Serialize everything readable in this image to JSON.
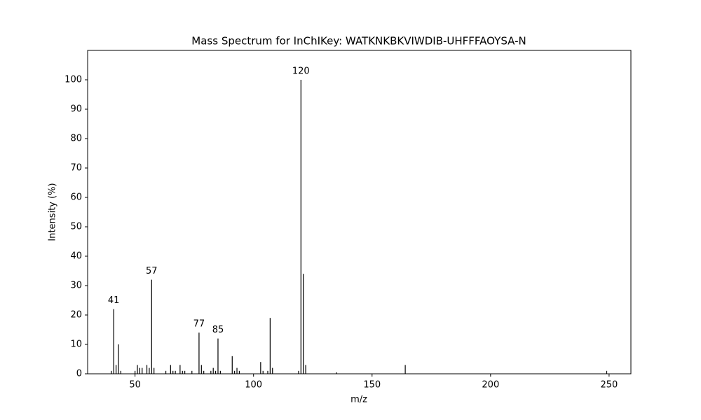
{
  "chart_data": {
    "type": "stem",
    "title": "Mass Spectrum for InChIKey: WATKNKBKVIWDIB-UHFFFAOYSA-N",
    "xlabel": "m/z",
    "ylabel": "Intensity (%)",
    "x": [
      40,
      41,
      42,
      43,
      44,
      50,
      51,
      52,
      53,
      55,
      56,
      57,
      58,
      63,
      65,
      66,
      67,
      69,
      70,
      71,
      74,
      77,
      78,
      79,
      82,
      83,
      84,
      85,
      86,
      91,
      92,
      93,
      94,
      103,
      104,
      106,
      107,
      108,
      119,
      120,
      121,
      122,
      135,
      164,
      249
    ],
    "values": [
      1,
      22,
      3,
      10,
      1,
      1,
      3,
      2,
      2,
      3,
      2,
      32,
      2,
      1,
      3,
      1,
      1,
      3,
      1,
      1,
      1,
      14,
      3,
      1,
      1,
      2,
      1,
      12,
      1,
      6,
      1,
      2,
      1,
      4,
      1,
      1,
      19,
      2,
      1,
      100,
      34,
      3,
      0.5,
      3,
      1
    ],
    "color": "#000000",
    "annotations": [
      {
        "text": "41",
        "x": 41,
        "y": 22
      },
      {
        "text": "57",
        "x": 57,
        "y": 32
      },
      {
        "text": "77",
        "x": 77,
        "y": 14
      },
      {
        "text": "85",
        "x": 85,
        "y": 12
      },
      {
        "text": "120",
        "x": 120,
        "y": 100
      }
    ],
    "xlim": [
      30,
      259.2
    ],
    "ylim": [
      0,
      110
    ],
    "xticks": [
      50,
      100,
      150,
      200,
      250
    ],
    "yticks": [
      0,
      10,
      20,
      30,
      40,
      50,
      60,
      70,
      80,
      90,
      100
    ],
    "grid": false
  }
}
